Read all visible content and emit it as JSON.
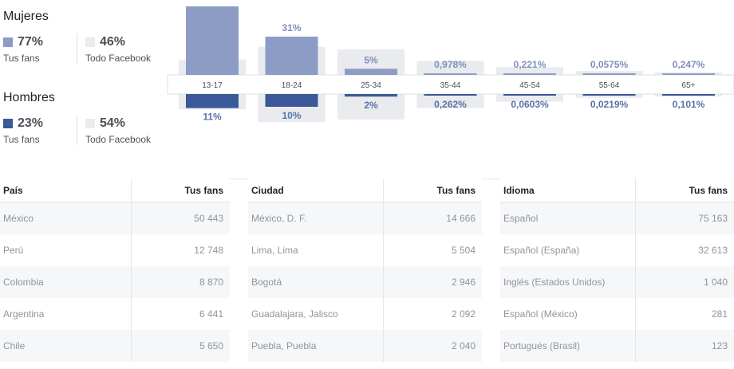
{
  "legend": {
    "women": {
      "title": "Mujeres",
      "fans_pct": "77%",
      "fans_label": "Tus fans",
      "fb_pct": "46%",
      "fb_label": "Todo Facebook"
    },
    "men": {
      "title": "Hombres",
      "fans_pct": "23%",
      "fans_label": "Tus fans",
      "fb_pct": "54%",
      "fb_label": "Todo Facebook"
    }
  },
  "colors": {
    "women": "#8c9cc5",
    "men": "#3b5998",
    "facebook": "#e9ebee",
    "label_women": "#7f8fb8",
    "label_men": "#5872a8"
  },
  "chart_data": {
    "type": "bar",
    "categories": [
      "13-17",
      "18-24",
      "25-34",
      "35-44",
      "45-54",
      "55-64",
      "65+"
    ],
    "series": [
      {
        "name": "Mujeres",
        "values": [
          56,
          31,
          5,
          0.978,
          0.221,
          0.0575,
          0.247
        ],
        "labels": [
          "",
          "31%",
          "5%",
          "0,978%",
          "0,221%",
          "0,0575%",
          "0,247%"
        ]
      },
      {
        "name": "Hombres",
        "values": [
          11,
          10,
          2,
          0.262,
          0.0603,
          0.0219,
          0.101
        ],
        "labels": [
          "11%",
          "10%",
          "2%",
          "0,262%",
          "0,0603%",
          "0,0219%",
          "0,101%"
        ]
      }
    ],
    "facebook_women": [
      12,
      22,
      20,
      11,
      6,
      3,
      2
    ],
    "facebook_men": [
      12,
      22,
      20,
      11,
      6,
      3,
      2
    ]
  },
  "tables": [
    {
      "col1": "País",
      "col2": "Tus fans",
      "rows": [
        {
          "name": "México",
          "value": "50 443"
        },
        {
          "name": "Perú",
          "value": "12 748"
        },
        {
          "name": "Colombia",
          "value": "8 870"
        },
        {
          "name": "Argentina",
          "value": "6 441"
        },
        {
          "name": "Chile",
          "value": "5 650"
        }
      ]
    },
    {
      "col1": "Ciudad",
      "col2": "Tus fans",
      "rows": [
        {
          "name": "México, D. F.",
          "value": "14 666"
        },
        {
          "name": "Lima, Lima",
          "value": "5 504"
        },
        {
          "name": "Bogotá",
          "value": "2 946"
        },
        {
          "name": "Guadalajara, Jalisco",
          "value": "2 092"
        },
        {
          "name": "Puebla, Puebla",
          "value": "2 040"
        }
      ]
    },
    {
      "col1": "Idioma",
      "col2": "Tus fans",
      "rows": [
        {
          "name": "Español",
          "value": "75 163"
        },
        {
          "name": "Español (España)",
          "value": "32 613"
        },
        {
          "name": "Inglés (Estados Unidos)",
          "value": "1 040"
        },
        {
          "name": "Español (México)",
          "value": "281"
        },
        {
          "name": "Portugués (Brasil)",
          "value": "123"
        }
      ]
    }
  ]
}
